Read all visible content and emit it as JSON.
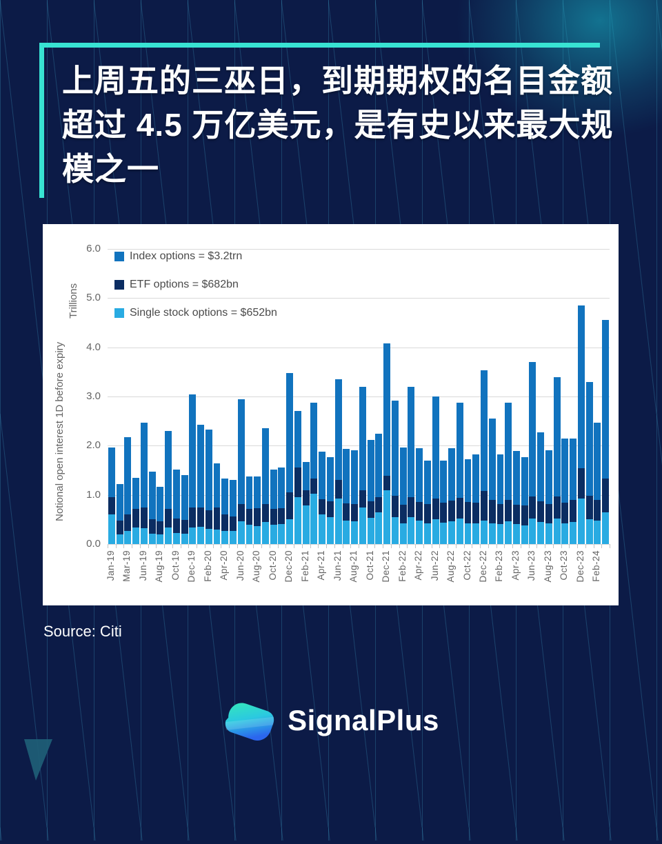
{
  "page": {
    "background_color": "#0C1B47",
    "accent_color": "#38E3D3",
    "pattern_line_color": "#3FA8CD",
    "glow_color": "#17A8BD"
  },
  "title": {
    "lines": [
      "上周五的三巫日，到期期权的名目金额",
      "超过 4.5 万亿美元，是有史以来最大规",
      "模之一"
    ]
  },
  "source": {
    "label": "Source: Citi"
  },
  "brand": {
    "name": "SignalPlus"
  },
  "chart_data": {
    "type": "bar",
    "stacked": true,
    "title": "",
    "xlabel": "",
    "ylabel": "Notional open interest 1D before expiry",
    "ylabel_units": "Trillions",
    "ylim": [
      0,
      6
    ],
    "y_ticks": [
      "6.0",
      "5.0",
      "4.0",
      "3.0",
      "2.0",
      "1.0",
      "0.0"
    ],
    "grid": true,
    "grid_color": "#D9D9D9",
    "axis_text_color": "#646464",
    "legend_position": "top-left-inside",
    "legend": [
      {
        "label": "Index options = $3.2trn",
        "color": "#1173BE"
      },
      {
        "label": "ETF options = $682bn",
        "color": "#0B2D62"
      },
      {
        "label": "Single stock options = $652bn",
        "color": "#29ABE2"
      }
    ],
    "categories": [
      "Jan-19",
      "",
      "Mar-19",
      "",
      "Jun-19",
      "",
      "Aug-19",
      "",
      "Oct-19",
      "",
      "Dec-19",
      "",
      "Feb-20",
      "",
      "Apr-20",
      "",
      "Jun-20",
      "",
      "Aug-20",
      "",
      "Oct-20",
      "",
      "Dec-20",
      "",
      "Feb-21",
      "",
      "Apr-21",
      "",
      "Jun-21",
      "",
      "Aug-21",
      "",
      "Oct-21",
      "",
      "Dec-21",
      "",
      "Feb-22",
      "",
      "Apr-22",
      "",
      "Jun-22",
      "",
      "Aug-22",
      "",
      "Oct-22",
      "",
      "Dec-22",
      "",
      "Feb-23",
      "",
      "Apr-23",
      "",
      "Jun-23",
      "",
      "Aug-23",
      "",
      "Oct-23",
      "",
      "Dec-23",
      "",
      "Feb-24",
      ""
    ],
    "series": [
      {
        "name": "Single stock options",
        "color": "#29ABE2",
        "values": [
          0.6,
          0.2,
          0.26,
          0.33,
          0.32,
          0.21,
          0.2,
          0.34,
          0.22,
          0.21,
          0.34,
          0.35,
          0.31,
          0.3,
          0.27,
          0.26,
          0.46,
          0.39,
          0.37,
          0.45,
          0.39,
          0.41,
          0.5,
          0.95,
          0.79,
          1.02,
          0.61,
          0.55,
          0.93,
          0.48,
          0.46,
          0.74,
          0.53,
          0.65,
          1.09,
          0.55,
          0.42,
          0.55,
          0.48,
          0.42,
          0.5,
          0.44,
          0.46,
          0.52,
          0.42,
          0.42,
          0.48,
          0.42,
          0.4,
          0.46,
          0.4,
          0.38,
          0.52,
          0.45,
          0.42,
          0.52,
          0.42,
          0.45,
          0.92,
          0.5,
          0.48,
          0.65
        ]
      },
      {
        "name": "ETF options",
        "color": "#0B2D62",
        "values": [
          0.35,
          0.28,
          0.34,
          0.38,
          0.42,
          0.3,
          0.26,
          0.38,
          0.3,
          0.28,
          0.4,
          0.4,
          0.38,
          0.45,
          0.33,
          0.3,
          0.35,
          0.33,
          0.36,
          0.36,
          0.33,
          0.32,
          0.55,
          0.6,
          0.3,
          0.31,
          0.3,
          0.32,
          0.37,
          0.35,
          0.35,
          0.35,
          0.34,
          0.31,
          0.3,
          0.43,
          0.38,
          0.4,
          0.38,
          0.4,
          0.42,
          0.4,
          0.42,
          0.42,
          0.44,
          0.42,
          0.6,
          0.48,
          0.42,
          0.44,
          0.4,
          0.4,
          0.45,
          0.42,
          0.4,
          0.45,
          0.42,
          0.45,
          0.62,
          0.48,
          0.42,
          0.68
        ]
      },
      {
        "name": "Index options",
        "color": "#1173BE",
        "values": [
          1.02,
          0.74,
          1.57,
          0.63,
          1.73,
          0.96,
          0.71,
          1.58,
          0.99,
          0.91,
          2.3,
          1.68,
          1.64,
          0.89,
          0.73,
          0.74,
          2.14,
          0.66,
          0.65,
          1.54,
          0.8,
          0.83,
          2.43,
          1.15,
          0.58,
          1.55,
          0.97,
          0.9,
          2.05,
          1.11,
          1.1,
          2.11,
          1.25,
          1.29,
          2.69,
          1.94,
          1.17,
          2.25,
          1.09,
          0.88,
          2.08,
          0.86,
          1.07,
          1.93,
          0.87,
          0.98,
          2.46,
          1.65,
          1.0,
          1.97,
          1.09,
          0.98,
          2.73,
          1.4,
          1.08,
          2.43,
          1.31,
          1.25,
          3.31,
          2.32,
          1.57,
          3.22
        ]
      }
    ]
  }
}
